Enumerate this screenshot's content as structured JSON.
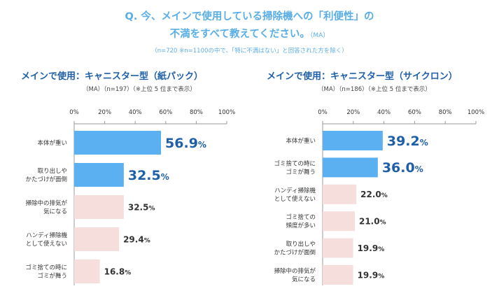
{
  "header": {
    "question_line1": "Q. 今、メインで使用している掃除機への「利便性」の",
    "question_line2": "不満をすべて教えてください。",
    "question_ma": "（MA）",
    "note": "（n=720 ※n=1100の中で、「特に不満はない」と回答された方を除く）"
  },
  "colors": {
    "highlight": "#5ab0f0",
    "normal": "#f6dedd",
    "accent_text": "#1f5fa8",
    "title": "#5aaee6"
  },
  "chart_data": [
    {
      "type": "bar",
      "orientation": "horizontal",
      "title": "メインで使用：キャニスター型（紙パック）",
      "subtitle": "（MA）（n=197）（※上位 5 位まで表示）",
      "xlim": [
        0,
        100
      ],
      "ticks": [
        "0%",
        "20%",
        "40%",
        "60%",
        "80%",
        "100%"
      ],
      "categories": [
        "本体が重い",
        "取り出しや\nかたづけが面倒",
        "掃除中の排気が\n気になる",
        "ハンディ掃除機\nとして使えない",
        "ゴミ捨ての時に\nゴミが舞う"
      ],
      "values": [
        56.9,
        32.5,
        32.5,
        29.4,
        16.8
      ],
      "labels": [
        "56.9",
        "32.5",
        "32.5",
        "29.4",
        "16.8"
      ],
      "highlighted": [
        true,
        true,
        false,
        false,
        false
      ]
    },
    {
      "type": "bar",
      "orientation": "horizontal",
      "title": "メインで使用：キャニスター型（サイクロン）",
      "subtitle": "（MA）（n=186）（※上位 5 位まで表示）",
      "xlim": [
        0,
        100
      ],
      "ticks": [
        "0%",
        "20%",
        "40%",
        "60%",
        "80%",
        "100%"
      ],
      "categories": [
        "本体が重い",
        "ゴミ捨ての時に\nゴミが舞う",
        "ハンディ掃除機\nとして使えない",
        "ゴミ捨ての\n頻度が多い",
        "取り出しや\nかたづけが面倒",
        "掃除中の排気が\n気になる"
      ],
      "values": [
        39.2,
        36.0,
        22.0,
        21.0,
        19.9,
        19.9
      ],
      "labels": [
        "39.2",
        "36.0",
        "22.0",
        "21.0",
        "19.9",
        "19.9"
      ],
      "highlighted": [
        true,
        true,
        false,
        false,
        false,
        false
      ]
    }
  ]
}
